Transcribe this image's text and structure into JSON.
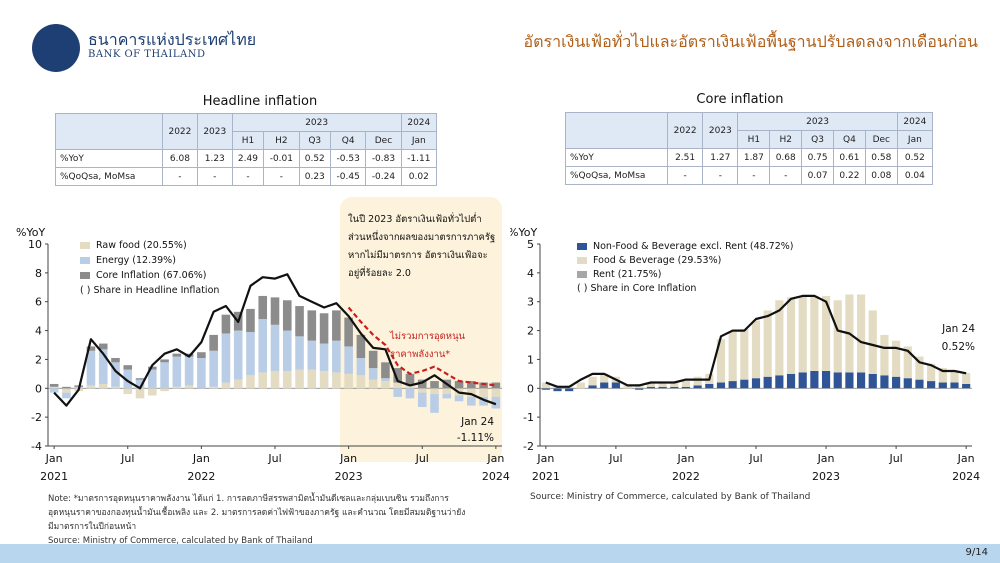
{
  "header": {
    "logo_thai": "ธนาคารแห่งประเทศไทย",
    "logo_en": "BANK OF THAILAND",
    "title": "อัตราเงินเฟ้อทั่วไปและอัตราเงินเฟ้อพื้นฐานปรับลดลงจากเดือนก่อน"
  },
  "tables": [
    {
      "title": "Headline inflation",
      "group_headers": [
        "2023",
        "2024"
      ],
      "columns": [
        "2022",
        "2023",
        "H1",
        "H2",
        "Q3",
        "Q4",
        "Dec",
        "Jan"
      ],
      "rows": [
        {
          "label": "%YoY",
          "cells": [
            "6.08",
            "1.23",
            "2.49",
            "-0.01",
            "0.52",
            "-0.53",
            "-0.83",
            "-1.11"
          ]
        },
        {
          "label": "%QoQsa, MoMsa",
          "cells": [
            "-",
            "-",
            "-",
            "-",
            "0.23",
            "-0.45",
            "-0.24",
            "0.02"
          ]
        }
      ]
    },
    {
      "title": "Core inflation",
      "group_headers": [
        "2023",
        "2024"
      ],
      "columns": [
        "2022",
        "2023",
        "H1",
        "H2",
        "Q3",
        "Q4",
        "Dec",
        "Jan"
      ],
      "rows": [
        {
          "label": "%YoY",
          "cells": [
            "2.51",
            "1.27",
            "1.87",
            "0.68",
            "0.75",
            "0.61",
            "0.58",
            "0.52"
          ]
        },
        {
          "label": "%QoQsa, MoMsa",
          "cells": [
            "-",
            "-",
            "-",
            "-",
            "0.07",
            "0.22",
            "0.08",
            "0.04"
          ]
        }
      ]
    }
  ],
  "note_box": {
    "text": "ในปี 2023 อัตราเงินเฟ้อทั่วไปต่ำ ส่วนหนึ่งจากผลของมาตรการภาครัฐ หากไม่มีมาตรการ อัตราเงินเฟ้อจะอยู่ที่ร้อยละ 2.0",
    "red_label": "ไม่รวมการอุดหนุน ราคาพลังงาน*"
  },
  "annotations": {
    "left_last": "Jan 24",
    "left_value": "-1.11%",
    "right_last": "Jan 24",
    "right_value": "0.52%"
  },
  "footer": {
    "note": "Note: *มาตรการอุดหนุนราคาพลังงาน ได้แก่ 1. การลดภาษีสรรพสามิตน้ำมันดีเซลและกลุ่มเบนซิน รวมถึงการอุดหนุนราคาของกองทุนน้ำมันเชื้อเพลิง และ 2. มาตรการลดค่าไฟฟ้าของภาครัฐ และคำนวณ โดยมีสมมติฐานว่ายังมีมาตรการในปีก่อนหน้า",
    "source_left": "Source: Ministry of Commerce, calculated by Bank of Thailand",
    "source_right": "Source: Ministry of Commerce, calculated by Bank of Thailand",
    "page": "9/14"
  },
  "chart_data": [
    {
      "type": "bar",
      "title": "",
      "ylabel": "%YoY",
      "ylim": [
        -4,
        10
      ],
      "yticks": [
        -4,
        -2,
        0,
        2,
        4,
        6,
        8,
        10
      ],
      "x_tick_labels": [
        {
          "index": 0,
          "month": "Jan",
          "year": "2021"
        },
        {
          "index": 6,
          "month": "Jul",
          "year": ""
        },
        {
          "index": 12,
          "month": "Jan",
          "year": "2022"
        },
        {
          "index": 18,
          "month": "Jul",
          "year": ""
        },
        {
          "index": 24,
          "month": "Jan",
          "year": "2023"
        },
        {
          "index": 30,
          "month": "Jul",
          "year": ""
        },
        {
          "index": 36,
          "month": "Jan",
          "year": "2024"
        }
      ],
      "stacked_series": [
        {
          "name": "Raw food (20.55%)",
          "color": "#e3dcc2",
          "values": [
            0.1,
            -0.3,
            -0.2,
            0.2,
            0.3,
            0.1,
            -0.4,
            -0.7,
            -0.5,
            -0.2,
            0.1,
            0.2,
            0.0,
            0.1,
            0.4,
            0.6,
            0.9,
            1.1,
            1.2,
            1.2,
            1.3,
            1.3,
            1.2,
            1.1,
            1.0,
            0.9,
            0.6,
            0.5,
            0.4,
            0.2,
            -0.3,
            -0.4,
            -0.4,
            -0.5,
            -0.6,
            -0.6,
            -0.6
          ]
        },
        {
          "name": "Energy (12.39%)",
          "color": "#b9cde6",
          "values": [
            -0.3,
            -0.4,
            0.1,
            2.4,
            2.4,
            1.7,
            1.3,
            0.6,
            1.3,
            1.8,
            2.1,
            2.0,
            2.1,
            2.5,
            3.4,
            3.4,
            3.0,
            3.7,
            3.2,
            2.8,
            2.3,
            2.0,
            1.9,
            2.2,
            1.9,
            1.2,
            0.8,
            0.2,
            -0.6,
            -0.7,
            -1.0,
            -1.3,
            -0.3,
            -0.4,
            -0.6,
            -0.6,
            -0.8
          ]
        },
        {
          "name": "Core Inflation (67.06%)",
          "color": "#8c8c8c",
          "values": [
            0.2,
            0.1,
            0.1,
            0.3,
            0.4,
            0.3,
            0.3,
            0.1,
            0.2,
            0.2,
            0.2,
            0.2,
            0.4,
            1.1,
            1.3,
            1.3,
            1.6,
            1.6,
            1.9,
            2.1,
            2.1,
            2.1,
            2.1,
            2.1,
            2.0,
            1.6,
            1.2,
            1.1,
            1.0,
            0.8,
            0.6,
            0.5,
            0.6,
            0.5,
            0.5,
            0.4,
            0.4
          ]
        }
      ],
      "lines": [
        {
          "name": "Headline",
          "color": "#111111",
          "style": "solid",
          "values": [
            -0.3,
            -1.2,
            -0.1,
            3.4,
            2.4,
            1.2,
            0.5,
            0.0,
            1.6,
            2.4,
            2.7,
            2.2,
            3.2,
            5.3,
            5.7,
            4.6,
            7.1,
            7.7,
            7.6,
            7.9,
            6.4,
            6.0,
            5.6,
            5.9,
            5.0,
            3.8,
            2.8,
            2.7,
            0.5,
            0.2,
            0.4,
            0.9,
            0.3,
            -0.3,
            -0.4,
            -0.8,
            -1.1
          ]
        },
        {
          "name": "ไม่รวมการอุดหนุน ราคาพลังงาน*",
          "color": "#c81e1e",
          "style": "dashed",
          "start_index": 24,
          "values": [
            5.6,
            4.6,
            3.7,
            3.0,
            1.6,
            1.0,
            1.2,
            1.5,
            1.0,
            0.5,
            0.4,
            0.3,
            0.2
          ]
        }
      ],
      "legend": [
        "Raw food (20.55%)",
        "Energy (12.39%)",
        "Core Inflation (67.06%)",
        "( ) Share in Headline Inflation"
      ],
      "legend_position": "top-left"
    },
    {
      "type": "bar",
      "title": "",
      "ylabel": "%YoY",
      "ylim": [
        -2,
        5
      ],
      "yticks": [
        -2,
        -1,
        0,
        1,
        2,
        3,
        4,
        5
      ],
      "x_tick_labels": [
        {
          "index": 0,
          "month": "Jan",
          "year": "2021"
        },
        {
          "index": 6,
          "month": "Jul",
          "year": ""
        },
        {
          "index": 12,
          "month": "Jan",
          "year": "2022"
        },
        {
          "index": 18,
          "month": "Jul",
          "year": ""
        },
        {
          "index": 24,
          "month": "Jan",
          "year": "2023"
        },
        {
          "index": 30,
          "month": "Jul",
          "year": ""
        },
        {
          "index": 36,
          "month": "Jan",
          "year": "2024"
        }
      ],
      "stacked_series": [
        {
          "name": "Non-Food & Beverage excl. Rent (48.72%)",
          "color": "#2f5597",
          "values": [
            -0.05,
            -0.1,
            -0.1,
            0.0,
            0.1,
            0.2,
            0.2,
            0.0,
            -0.05,
            0.05,
            0.05,
            0.05,
            0.05,
            0.1,
            0.15,
            0.2,
            0.25,
            0.3,
            0.35,
            0.4,
            0.45,
            0.5,
            0.55,
            0.6,
            0.6,
            0.55,
            0.55,
            0.55,
            0.5,
            0.45,
            0.4,
            0.35,
            0.3,
            0.25,
            0.2,
            0.2,
            0.15
          ]
        },
        {
          "name": "Food & Beverage (29.53%)",
          "color": "#e3dcc2",
          "values": [
            0.2,
            0.1,
            0.1,
            0.2,
            0.3,
            0.3,
            0.2,
            0.1,
            0.15,
            0.15,
            0.15,
            0.15,
            0.2,
            0.3,
            0.35,
            1.5,
            1.7,
            1.75,
            2.0,
            2.3,
            2.6,
            2.65,
            2.65,
            2.6,
            2.6,
            2.5,
            2.7,
            2.7,
            2.2,
            1.4,
            1.25,
            1.1,
            0.8,
            0.6,
            0.5,
            0.4,
            0.38
          ]
        },
        {
          "name": "Rent (21.75%)",
          "color": "#a6a6a6",
          "values": [
            0.0,
            0.0,
            0.0,
            0.0,
            0.0,
            0.0,
            0.0,
            0.0,
            0.0,
            0.0,
            0.0,
            0.0,
            0.0,
            0.0,
            0.0,
            0.0,
            0.0,
            0.0,
            0.0,
            0.0,
            0.0,
            0.0,
            0.0,
            0.0,
            0.0,
            0.0,
            0.0,
            0.0,
            0.0,
            0.0,
            0.0,
            0.0,
            0.0,
            0.0,
            0.0,
            0.0,
            0.0
          ]
        }
      ],
      "lines": [
        {
          "name": "Core",
          "color": "#111111",
          "style": "solid",
          "values": [
            0.2,
            0.05,
            0.05,
            0.3,
            0.5,
            0.5,
            0.3,
            0.1,
            0.1,
            0.2,
            0.2,
            0.2,
            0.3,
            0.3,
            0.3,
            1.8,
            2.0,
            2.0,
            2.4,
            2.5,
            2.7,
            3.1,
            3.2,
            3.2,
            3.0,
            2.0,
            1.9,
            1.6,
            1.5,
            1.4,
            1.4,
            1.3,
            0.9,
            0.8,
            0.6,
            0.6,
            0.52
          ]
        }
      ],
      "legend": [
        "Non-Food & Beverage excl. Rent (48.72%)",
        "Food & Beverage (29.53%)",
        "Rent (21.75%)",
        "( ) Share in Core Inflation"
      ],
      "legend_position": "top-left"
    }
  ]
}
